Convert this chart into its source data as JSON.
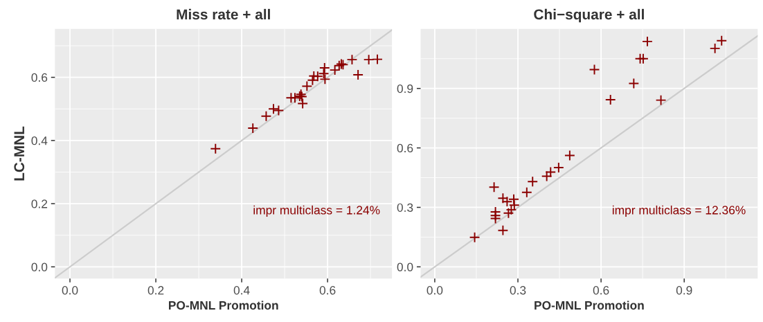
{
  "chart_data": [
    {
      "type": "scatter",
      "title": "Miss rate + all",
      "xlabel": "PO-MNL Promotion",
      "ylabel": "LC-MNL",
      "annotations": [
        "impr multiclass = 1.24%"
      ],
      "xlim": [
        -0.035,
        0.75
      ],
      "ylim": [
        -0.037,
        0.753
      ],
      "xticks": [
        {
          "value": 0,
          "label": "0.0"
        },
        {
          "value": 0.2,
          "label": "0.2"
        },
        {
          "value": 0.4,
          "label": "0.4"
        },
        {
          "value": 0.6,
          "label": "0.6"
        }
      ],
      "yticks": [
        {
          "value": 0,
          "label": "0.0"
        },
        {
          "value": 0.2,
          "label": "0.2"
        },
        {
          "value": 0.4,
          "label": "0.4"
        },
        {
          "value": 0.6,
          "label": "0.6"
        }
      ],
      "grid": true,
      "marker": "cross",
      "series": [
        {
          "type": "line",
          "color": "#cccccc",
          "marker": "none",
          "x": [
            -0.035,
            0.75
          ],
          "values": [
            -0.035,
            0.75
          ]
        },
        {
          "color": "#8b0000",
          "x": [
            0.339,
            0.426,
            0.457,
            0.474,
            0.486,
            0.515,
            0.524,
            0.535,
            0.54,
            0.538,
            0.542,
            0.552,
            0.565,
            0.568,
            0.577,
            0.591,
            0.593,
            0.594,
            0.617,
            0.627,
            0.632,
            0.636,
            0.657,
            0.671,
            0.696,
            0.716
          ],
          "values": [
            0.374,
            0.439,
            0.477,
            0.5,
            0.495,
            0.535,
            0.535,
            0.54,
            0.539,
            0.546,
            0.517,
            0.572,
            0.591,
            0.604,
            0.603,
            0.612,
            0.63,
            0.594,
            0.623,
            0.637,
            0.642,
            0.64,
            0.656,
            0.608,
            0.656,
            0.657
          ]
        }
      ]
    },
    {
      "type": "scatter",
      "title": "Chi−square + all",
      "xlabel": "PO-MNL Promotion",
      "annotations": [
        "impr multiclass = 12.36%"
      ],
      "xlim": [
        -0.051,
        1.165
      ],
      "ylim": [
        -0.059,
        1.2
      ],
      "xticks": [
        {
          "value": 0,
          "label": "0.0"
        },
        {
          "value": 0.3,
          "label": "0.3"
        },
        {
          "value": 0.6,
          "label": "0.6"
        },
        {
          "value": 0.9,
          "label": "0.9"
        }
      ],
      "yticks": [
        {
          "value": 0,
          "label": "0.0"
        },
        {
          "value": 0.3,
          "label": "0.3"
        },
        {
          "value": 0.6,
          "label": "0.6"
        },
        {
          "value": 0.9,
          "label": "0.9"
        }
      ],
      "grid": true,
      "marker": "cross",
      "series": [
        {
          "type": "line",
          "color": "#cccccc",
          "marker": "none",
          "x": [
            -0.051,
            1.165
          ],
          "values": [
            -0.051,
            1.165
          ]
        },
        {
          "color": "#8b0000",
          "x": [
            0.144,
            0.214,
            0.246,
            0.219,
            0.219,
            0.219,
            0.246,
            0.261,
            0.266,
            0.276,
            0.285,
            0.287,
            0.332,
            0.353,
            0.404,
            0.418,
            0.447,
            0.487,
            0.576,
            0.634,
            0.718,
            0.741,
            0.752,
            0.767,
            0.816,
            1.011,
            1.035
          ],
          "values": [
            0.149,
            0.402,
            0.184,
            0.277,
            0.259,
            0.244,
            0.346,
            0.329,
            0.271,
            0.288,
            0.341,
            0.311,
            0.376,
            0.43,
            0.457,
            0.478,
            0.501,
            0.562,
            0.995,
            0.843,
            0.925,
            1.05,
            1.05,
            1.137,
            0.841,
            1.102,
            1.141
          ]
        }
      ]
    }
  ]
}
